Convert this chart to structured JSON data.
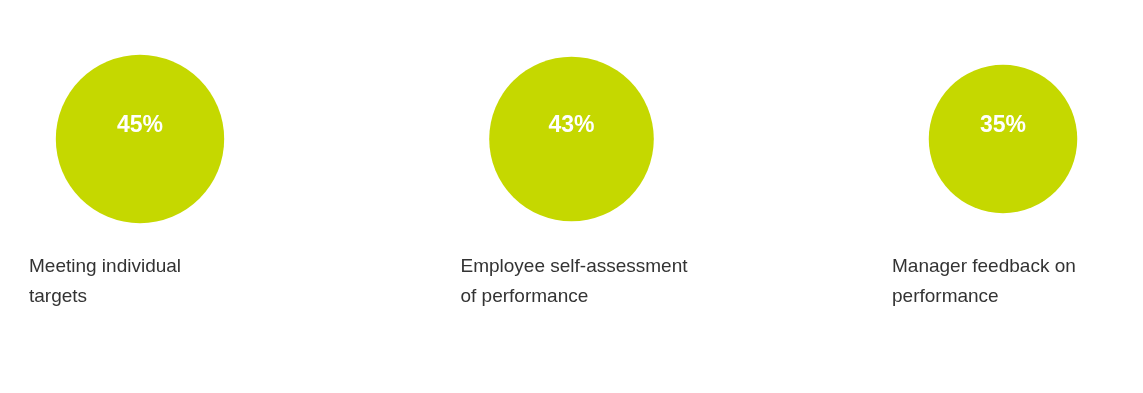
{
  "chart_data": {
    "type": "other",
    "categories": [
      "Meeting individual targets",
      "Employee self-assessment of performance",
      "Manager feedback on performance"
    ],
    "values": [
      45,
      43,
      35
    ],
    "value_labels": [
      "45%",
      "43%",
      "35%"
    ],
    "color": "#c5d800"
  }
}
